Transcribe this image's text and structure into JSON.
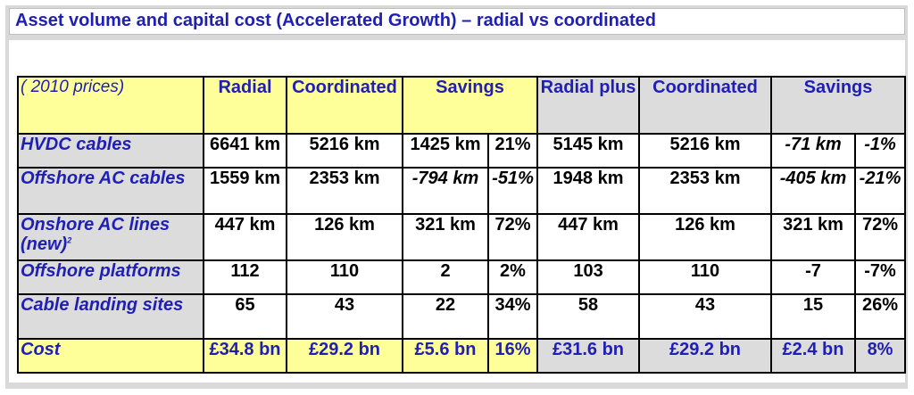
{
  "title": "Asset volume and capital cost (Accelerated Growth) – radial vs coordinated",
  "header": {
    "prices": "( 2010 prices)",
    "radial": "Radial",
    "coordinated": "Coordinated",
    "savings": "Savings",
    "radial_plus": "Radial plus",
    "coordinated2": "Coordinated",
    "savings2": "Savings"
  },
  "rows": [
    {
      "label": "HVDC cables",
      "sup": "",
      "radial": "6641 km",
      "coord": "5216 km",
      "sav": "1425 km",
      "pct": "21%",
      "rplus": "5145 km",
      "coord2": "5216 km",
      "sav2": "-71 km",
      "pct2": "-1%"
    },
    {
      "label": "Offshore AC cables",
      "sup": "",
      "radial": "1559 km",
      "coord": "2353 km",
      "sav": "-794 km",
      "pct": "-51%",
      "rplus": "1948 km",
      "coord2": "2353 km",
      "sav2": "-405 km",
      "pct2": "-21%"
    },
    {
      "label": "Onshore AC lines (new)",
      "sup": "2",
      "radial": "447 km",
      "coord": "126 km",
      "sav": "321 km",
      "pct": "72%",
      "rplus": "447 km",
      "coord2": "126 km",
      "sav2": "321 km",
      "pct2": "72%"
    },
    {
      "label": "Offshore platforms",
      "sup": "",
      "radial": "112",
      "coord": "110",
      "sav": "2",
      "pct": "2%",
      "rplus": "103",
      "coord2": "110",
      "sav2": "-7",
      "pct2": "-7%"
    },
    {
      "label": "Cable landing sites",
      "sup": "",
      "radial": "65",
      "coord": "43",
      "sav": "22",
      "pct": "34%",
      "rplus": "58",
      "coord2": "43",
      "sav2": "15",
      "pct2": "26%"
    },
    {
      "label": "Cost",
      "sup": "",
      "radial": "£34.8 bn",
      "coord": "£29.2 bn",
      "sav": "£5.6 bn",
      "pct": "16%",
      "rplus": "£31.6 bn",
      "coord2": "£29.2 bn",
      "sav2": "£2.4 bn",
      "pct2": "8%"
    }
  ],
  "colors": {
    "header_text": "#1f1fb4",
    "yellow": "#ffff99",
    "gray": "#dcdcdc"
  }
}
